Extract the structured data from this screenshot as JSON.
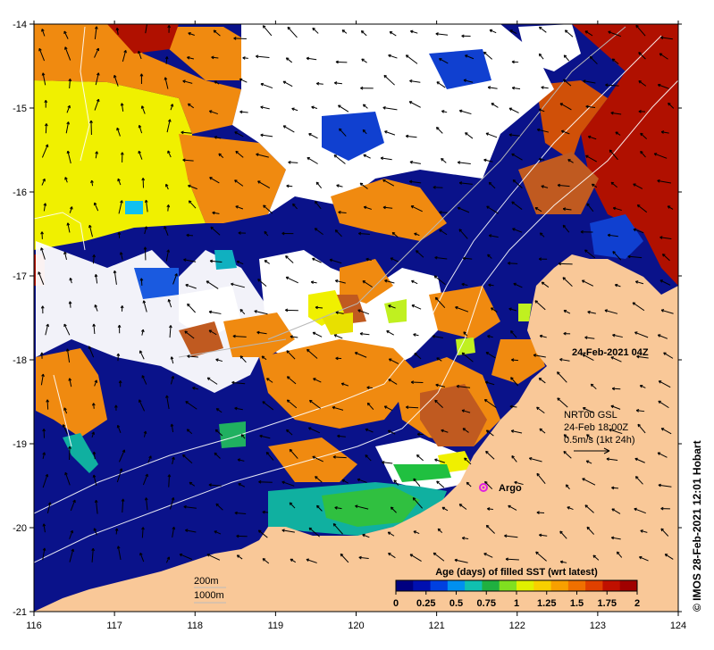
{
  "map": {
    "date_label": "24-Feb-2021 04Z",
    "current_info": [
      "NRT00 GSL",
      "24-Feb 18:00Z",
      "0.5m/s (1kt 24h)"
    ],
    "argo_label": "Argo",
    "scale_labels": [
      "200m",
      "1000m"
    ],
    "credit": "© IMOS 28-Feb-2021 12:01 Hobart",
    "x_ticks": [
      "116",
      "117",
      "118",
      "119",
      "120",
      "121",
      "122",
      "123",
      "124"
    ],
    "y_ticks": [
      "-14",
      "-15",
      "-16",
      "-17",
      "-18",
      "-19",
      "-20",
      "-21"
    ],
    "land_color": "#f9c898"
  },
  "colorbar": {
    "title": "Age (days) of filled SST (wrt latest)",
    "ticks": [
      "0",
      "0.25",
      "0.5",
      "0.75",
      "1",
      "1.25",
      "1.5",
      "1.75",
      "2"
    ],
    "colors": [
      "#000080",
      "#0010b0",
      "#0040e0",
      "#0090f0",
      "#10c0b0",
      "#20b040",
      "#80e020",
      "#e0f000",
      "#f8d000",
      "#f8a000",
      "#f07000",
      "#e04000",
      "#c01000",
      "#a00000"
    ]
  }
}
